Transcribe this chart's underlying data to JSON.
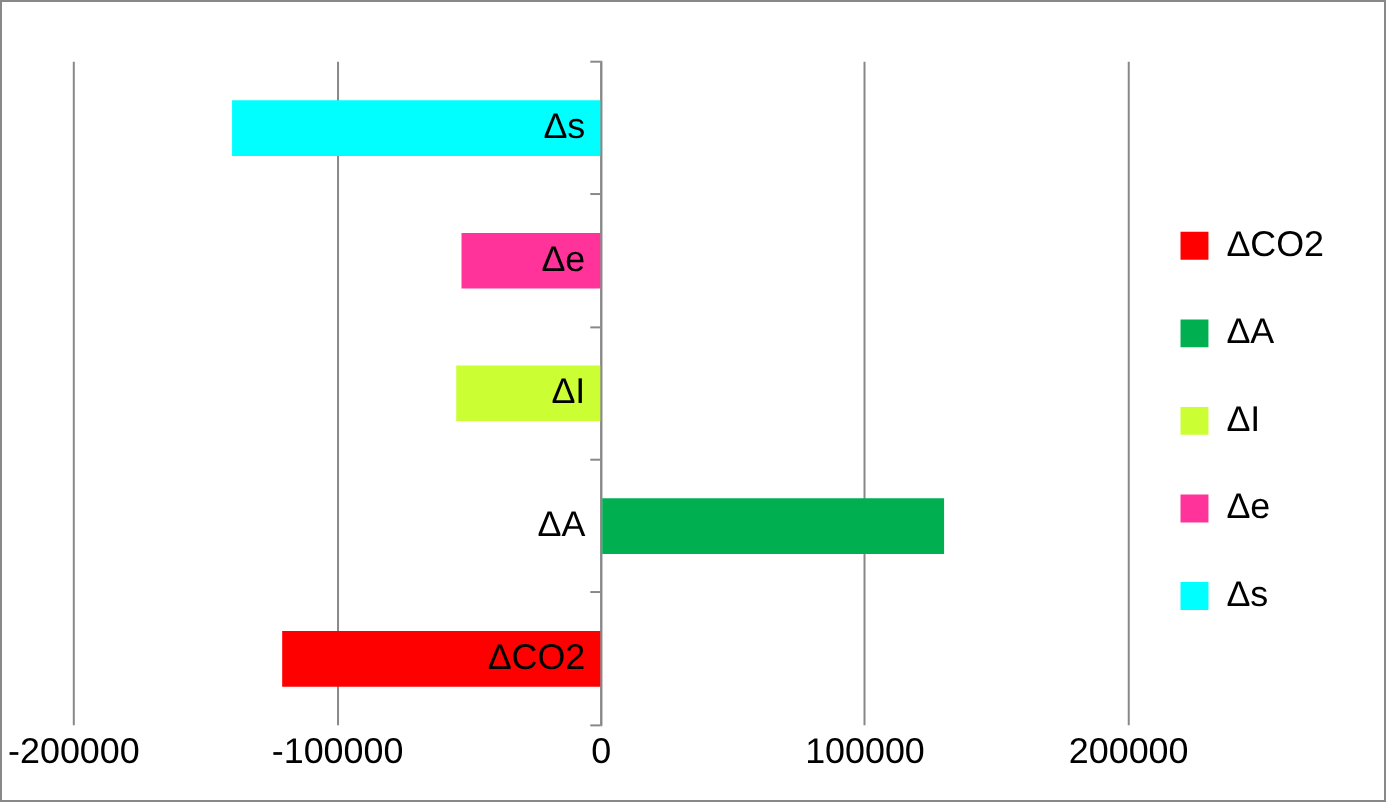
{
  "chart_data": {
    "type": "bar",
    "orientation": "horizontal",
    "categories": [
      "Δs",
      "Δe",
      "ΔI",
      "ΔA",
      "ΔCO2"
    ],
    "series": [
      {
        "name": "ΔCO2",
        "color": "#ff0000",
        "values": [
          null,
          null,
          null,
          null,
          -121000
        ]
      },
      {
        "name": "ΔA",
        "color": "#00b050",
        "values": [
          null,
          null,
          null,
          130000,
          null
        ]
      },
      {
        "name": "ΔI",
        "color": "#ccff33",
        "values": [
          null,
          null,
          -55000,
          null,
          null
        ]
      },
      {
        "name": "Δe",
        "color": "#ff3399",
        "values": [
          null,
          -53000,
          null,
          null,
          null
        ]
      },
      {
        "name": "Δs",
        "color": "#00ffff",
        "values": [
          -140000,
          null,
          null,
          null,
          null
        ]
      }
    ],
    "xlim": [
      -200000,
      200000
    ],
    "xticks": [
      -200000,
      -100000,
      0,
      100000,
      200000
    ],
    "grid": "x",
    "legend": "right"
  }
}
